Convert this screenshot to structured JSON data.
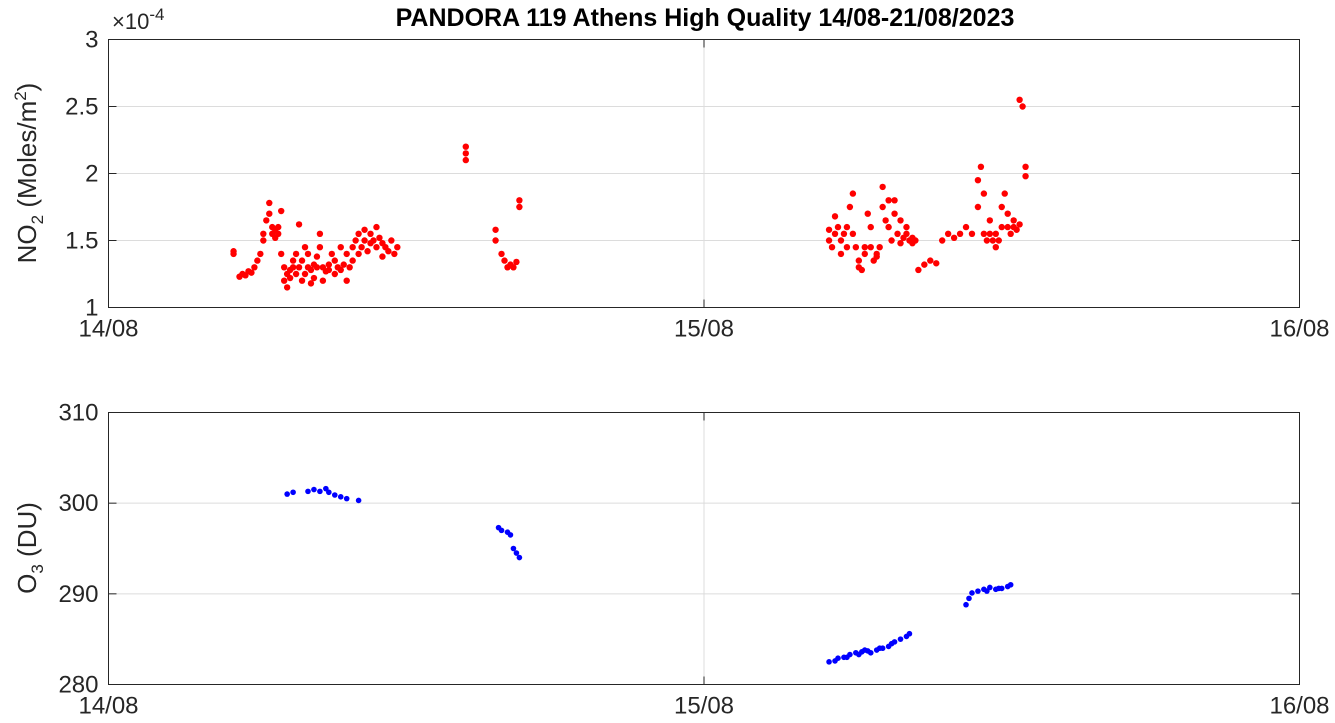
{
  "chart_data": [
    {
      "type": "scatter",
      "title": "PANDORA 119 Athens High Quality 14/08-21/08/2023",
      "ylabel_main": "NO",
      "ylabel_sub": "2",
      "ylabel_mid": " (Moles/m",
      "ylabel_sup": "2",
      "ylabel_end": ")",
      "exponent_base": "×10",
      "exponent_power": "-4",
      "xlim": [
        0,
        2
      ],
      "ylim": [
        1,
        3
      ],
      "xticks": [
        0,
        1,
        2
      ],
      "xticklabels": [
        "14/08",
        "15/08",
        "16/08"
      ],
      "yticks": [
        1,
        1.5,
        2,
        2.5,
        3
      ],
      "yticklabels": [
        "1",
        "1.5",
        "2",
        "2.5",
        "3"
      ],
      "x_unit": "days from 14/08",
      "grid": true,
      "color": "#ff0000",
      "series": [
        {
          "x": [
            0.21,
            0.21,
            0.22,
            0.225,
            0.23,
            0.235,
            0.24,
            0.245,
            0.25,
            0.255,
            0.26,
            0.26,
            0.265,
            0.27,
            0.27,
            0.275,
            0.275,
            0.28,
            0.28,
            0.285,
            0.285,
            0.29,
            0.29,
            0.295,
            0.295,
            0.3,
            0.3,
            0.305,
            0.305,
            0.31,
            0.31,
            0.315,
            0.315,
            0.32,
            0.32,
            0.325,
            0.325,
            0.33,
            0.33,
            0.335,
            0.335,
            0.34,
            0.34,
            0.345,
            0.345,
            0.35,
            0.35,
            0.355,
            0.355,
            0.36,
            0.36,
            0.365,
            0.37,
            0.37,
            0.375,
            0.38,
            0.38,
            0.385,
            0.39,
            0.39,
            0.395,
            0.4,
            0.4,
            0.405,
            0.41,
            0.41,
            0.415,
            0.42,
            0.42,
            0.425,
            0.43,
            0.43,
            0.435,
            0.44,
            0.44,
            0.445,
            0.45,
            0.45,
            0.455,
            0.46,
            0.46,
            0.465,
            0.47,
            0.475,
            0.48,
            0.485,
            0.6,
            0.6,
            0.6,
            0.65,
            0.65,
            0.66,
            0.665,
            0.67,
            0.675,
            0.68,
            0.685,
            0.69,
            0.69
          ],
          "y": [
            1.42,
            1.4,
            1.23,
            1.25,
            1.24,
            1.27,
            1.26,
            1.3,
            1.35,
            1.4,
            1.5,
            1.55,
            1.65,
            1.7,
            1.78,
            1.55,
            1.6,
            1.52,
            1.58,
            1.6,
            1.55,
            1.72,
            1.4,
            1.3,
            1.2,
            1.15,
            1.25,
            1.28,
            1.22,
            1.35,
            1.3,
            1.25,
            1.4,
            1.62,
            1.3,
            1.2,
            1.35,
            1.45,
            1.25,
            1.3,
            1.4,
            1.18,
            1.28,
            1.22,
            1.32,
            1.3,
            1.38,
            1.55,
            1.45,
            1.2,
            1.3,
            1.27,
            1.32,
            1.28,
            1.4,
            1.25,
            1.35,
            1.3,
            1.45,
            1.28,
            1.32,
            1.2,
            1.4,
            1.3,
            1.45,
            1.35,
            1.5,
            1.4,
            1.55,
            1.45,
            1.58,
            1.5,
            1.42,
            1.48,
            1.55,
            1.5,
            1.6,
            1.45,
            1.52,
            1.48,
            1.38,
            1.45,
            1.42,
            1.5,
            1.4,
            1.45,
            2.2,
            2.15,
            2.1,
            1.58,
            1.5,
            1.4,
            1.35,
            1.3,
            1.32,
            1.3,
            1.34,
            1.75,
            1.8
          ]
        },
        {
          "x": [
            1.21,
            1.21,
            1.215,
            1.22,
            1.22,
            1.225,
            1.23,
            1.23,
            1.235,
            1.24,
            1.24,
            1.245,
            1.25,
            1.25,
            1.255,
            1.26,
            1.26,
            1.265,
            1.27,
            1.27,
            1.275,
            1.28,
            1.28,
            1.285,
            1.29,
            1.29,
            1.295,
            1.3,
            1.3,
            1.305,
            1.31,
            1.31,
            1.315,
            1.32,
            1.32,
            1.325,
            1.33,
            1.33,
            1.335,
            1.34,
            1.34,
            1.345,
            1.35,
            1.35,
            1.355,
            1.36,
            1.37,
            1.38,
            1.39,
            1.4,
            1.41,
            1.42,
            1.43,
            1.44,
            1.45,
            1.46,
            1.46,
            1.465,
            1.47,
            1.47,
            1.475,
            1.48,
            1.48,
            1.485,
            1.49,
            1.49,
            1.495,
            1.5,
            1.5,
            1.505,
            1.51,
            1.51,
            1.515,
            1.52,
            1.52,
            1.525,
            1.53,
            1.53,
            1.535,
            1.54,
            1.54
          ],
          "y": [
            1.58,
            1.5,
            1.45,
            1.55,
            1.68,
            1.6,
            1.5,
            1.4,
            1.55,
            1.45,
            1.6,
            1.75,
            1.85,
            1.55,
            1.45,
            1.35,
            1.3,
            1.28,
            1.4,
            1.45,
            1.7,
            1.6,
            1.45,
            1.35,
            1.4,
            1.38,
            1.45,
            1.75,
            1.9,
            1.65,
            1.8,
            1.6,
            1.5,
            1.7,
            1.8,
            1.55,
            1.65,
            1.48,
            1.52,
            1.6,
            1.55,
            1.5,
            1.48,
            1.52,
            1.5,
            1.28,
            1.32,
            1.35,
            1.33,
            1.5,
            1.55,
            1.52,
            1.55,
            1.6,
            1.55,
            1.75,
            1.95,
            2.05,
            1.85,
            1.55,
            1.5,
            1.65,
            1.55,
            1.5,
            1.45,
            1.55,
            1.5,
            1.6,
            1.75,
            1.85,
            1.7,
            1.6,
            1.55,
            1.65,
            1.6,
            1.58,
            1.62,
            2.55,
            2.5,
            2.05,
            1.98
          ]
        }
      ]
    },
    {
      "type": "scatter",
      "ylabel_main": "O",
      "ylabel_sub": "3",
      "ylabel_end": " (DU)",
      "xlim": [
        0,
        2
      ],
      "ylim": [
        280,
        310
      ],
      "xticks": [
        0,
        1,
        2
      ],
      "xticklabels": [
        "14/08",
        "15/08",
        "16/08"
      ],
      "yticks": [
        280,
        290,
        300,
        310
      ],
      "yticklabels": [
        "280",
        "290",
        "300",
        "310"
      ],
      "x_unit": "days from 14/08",
      "grid": true,
      "color": "#0000ff",
      "series": [
        {
          "x": [
            0.3,
            0.31,
            0.335,
            0.345,
            0.355,
            0.365,
            0.37,
            0.38,
            0.39,
            0.4,
            0.42,
            0.655,
            0.66,
            0.67,
            0.675,
            0.68,
            0.685,
            0.69,
            1.21,
            1.22,
            1.225,
            1.235,
            1.24,
            1.245,
            1.255,
            1.26,
            1.265,
            1.27,
            1.275,
            1.28,
            1.29,
            1.295,
            1.3,
            1.31,
            1.315,
            1.32,
            1.33,
            1.34,
            1.345,
            1.44,
            1.445,
            1.45,
            1.46,
            1.47,
            1.475,
            1.48,
            1.49,
            1.495,
            1.5,
            1.51,
            1.515
          ],
          "y": [
            301.0,
            301.2,
            301.3,
            301.5,
            301.3,
            301.6,
            301.2,
            300.9,
            300.7,
            300.5,
            300.3,
            297.3,
            297.0,
            296.8,
            296.5,
            295.0,
            294.5,
            294.0,
            282.5,
            282.6,
            282.9,
            283.0,
            283.0,
            283.3,
            283.5,
            283.3,
            283.6,
            283.8,
            283.7,
            283.5,
            283.8,
            284.0,
            284.0,
            284.2,
            284.5,
            284.7,
            285.0,
            285.3,
            285.6,
            288.8,
            289.5,
            290.1,
            290.3,
            290.5,
            290.3,
            290.7,
            290.5,
            290.6,
            290.6,
            290.8,
            291.0
          ]
        }
      ]
    }
  ]
}
